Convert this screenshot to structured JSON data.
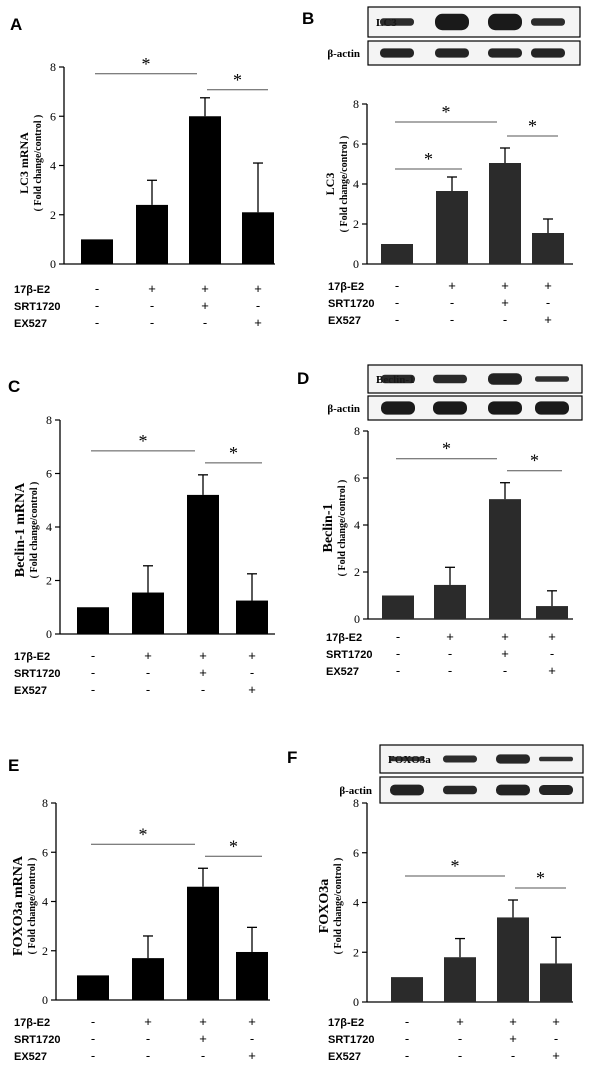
{
  "row_labels": [
    "17β-E2",
    "SRT1720",
    "EX527"
  ],
  "treatment_signs": [
    [
      "-",
      "+",
      "+",
      "+"
    ],
    [
      "-",
      "-",
      "+",
      "-"
    ],
    [
      "-",
      "-",
      "-",
      "+"
    ]
  ],
  "colors": {
    "bar_mrna": "#000000",
    "bar_protein": "#2b2b2b",
    "band": "#1a1a1a"
  },
  "chart_data": [
    {
      "panel": "A",
      "type": "bar",
      "title": "",
      "ylabel": "LC3 mRNA",
      "ylabel_sub": "( Fold change/control )",
      "ylim": [
        0,
        8
      ],
      "yticks": [
        "0",
        "2",
        "4",
        "6",
        "8"
      ],
      "values": [
        1.0,
        2.4,
        6.0,
        2.1
      ],
      "errors": [
        0,
        1.0,
        0.75,
        2.0
      ],
      "significance": [
        {
          "from": 0,
          "to": 2,
          "label": "*"
        },
        {
          "from": 2,
          "to": 3,
          "label": "*"
        }
      ]
    },
    {
      "panel": "B",
      "type": "bar",
      "title": "",
      "ylabel": "LC3",
      "ylabel_sub": "( Fold change/control )",
      "ylim": [
        0,
        8
      ],
      "yticks": [
        "0",
        "2",
        "4",
        "6",
        "8"
      ],
      "values": [
        1.0,
        3.65,
        5.05,
        1.55
      ],
      "errors": [
        0,
        0.7,
        0.75,
        0.7
      ],
      "blot_labels": [
        "LC3",
        "β-actin"
      ],
      "significance": [
        {
          "from": 0,
          "to": 1,
          "label": "*"
        },
        {
          "from": 0,
          "to": 2,
          "label": "*"
        },
        {
          "from": 2,
          "to": 3,
          "label": "*"
        }
      ]
    },
    {
      "panel": "C",
      "type": "bar",
      "title": "",
      "ylabel": "Beclin-1 mRNA",
      "ylabel_sub": "( Fold change/control )",
      "ylim": [
        0,
        8
      ],
      "yticks": [
        "0",
        "2",
        "4",
        "6",
        "8"
      ],
      "values": [
        1.0,
        1.55,
        5.2,
        1.25
      ],
      "errors": [
        0,
        1.0,
        0.75,
        1.0
      ],
      "significance": [
        {
          "from": 0,
          "to": 2,
          "label": "*"
        },
        {
          "from": 2,
          "to": 3,
          "label": "*"
        }
      ]
    },
    {
      "panel": "D",
      "type": "bar",
      "title": "",
      "ylabel": "Beclin-1",
      "ylabel_sub": "( Fold change/control )",
      "ylim": [
        0,
        8
      ],
      "yticks": [
        "0",
        "2",
        "4",
        "6",
        "8"
      ],
      "values": [
        1.0,
        1.45,
        5.1,
        0.55
      ],
      "errors": [
        0,
        0.75,
        0.7,
        0.65
      ],
      "blot_labels": [
        "Beclin-1",
        "β-actin"
      ],
      "significance": [
        {
          "from": 0,
          "to": 2,
          "label": "*"
        },
        {
          "from": 2,
          "to": 3,
          "label": "*"
        }
      ]
    },
    {
      "panel": "E",
      "type": "bar",
      "title": "",
      "ylabel": "FOXO3a  mRNA",
      "ylabel_sub": "( Fold change/control )",
      "ylim": [
        0,
        8
      ],
      "yticks": [
        "0",
        "2",
        "4",
        "6",
        "8"
      ],
      "values": [
        1.0,
        1.7,
        4.6,
        1.95
      ],
      "errors": [
        0,
        0.9,
        0.75,
        1.0
      ],
      "significance": [
        {
          "from": 0,
          "to": 2,
          "label": "*"
        },
        {
          "from": 2,
          "to": 3,
          "label": "*"
        }
      ]
    },
    {
      "panel": "F",
      "type": "bar",
      "title": "",
      "ylabel": "FOXO3a",
      "ylabel_sub": "( Fold change/control )",
      "ylim": [
        0,
        8
      ],
      "yticks": [
        "0",
        "2",
        "4",
        "6",
        "8"
      ],
      "values": [
        1.0,
        1.8,
        3.4,
        1.55
      ],
      "errors": [
        0,
        0.75,
        0.7,
        1.05
      ],
      "blot_labels": [
        "FOXO3a",
        "β-actin"
      ],
      "significance": [
        {
          "from": 0,
          "to": 2,
          "label": "*"
        },
        {
          "from": 2,
          "to": 3,
          "label": "*"
        }
      ]
    }
  ]
}
